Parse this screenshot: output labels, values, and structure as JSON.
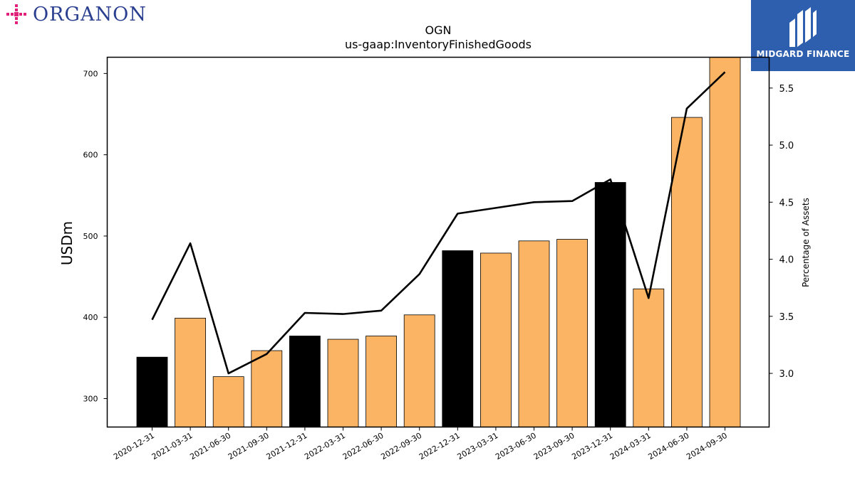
{
  "brand": {
    "left_logo": "ORGANON",
    "right_logo": "MIDGARD FINANCE",
    "left_icon": "organon-cross-icon",
    "right_icon": "midgard-m-icon",
    "left_color": "#2a3f8f",
    "left_accent": "#e0207a",
    "right_bg": "#2e5fae"
  },
  "chart_data": {
    "type": "bar",
    "title": "OGN",
    "subtitle": "us-gaap:InventoryFinishedGoods",
    "ylabel": "USDm",
    "y2label": "Percentage of Assets",
    "ylim": [
      265,
      720
    ],
    "y2lim": [
      2.53,
      5.77
    ],
    "yticks": [
      300,
      400,
      500,
      600,
      700
    ],
    "y2ticks": [
      "3.0",
      "3.5",
      "4.0",
      "4.5",
      "5.0",
      "5.5"
    ],
    "categories": [
      "2020-12-31",
      "2021-03-31",
      "2021-06-30",
      "2021-09-30",
      "2021-12-31",
      "2022-03-31",
      "2022-06-30",
      "2022-09-30",
      "2022-12-31",
      "2023-03-31",
      "2023-06-30",
      "2023-09-30",
      "2023-12-31",
      "2024-03-31",
      "2024-06-30",
      "2024-09-30"
    ],
    "series": [
      {
        "values": [
          351,
          399,
          327,
          359,
          377,
          373,
          377,
          403,
          482,
          479,
          494,
          496,
          566,
          435,
          646,
          720
        ],
        "colors": [
          "#000000",
          "#fbb464",
          "#fbb464",
          "#fbb464",
          "#000000",
          "#fbb464",
          "#fbb464",
          "#fbb464",
          "#000000",
          "#fbb464",
          "#fbb464",
          "#fbb464",
          "#000000",
          "#fbb464",
          "#fbb464",
          "#fbb464"
        ]
      },
      {
        "type": "line",
        "axis": "right",
        "color": "#000000",
        "values": [
          3.47,
          4.14,
          3.0,
          3.17,
          3.53,
          3.52,
          3.55,
          3.87,
          4.4,
          4.45,
          4.5,
          4.51,
          4.7,
          3.66,
          5.32,
          5.64
        ]
      }
    ],
    "grid": false,
    "legend": "none"
  }
}
